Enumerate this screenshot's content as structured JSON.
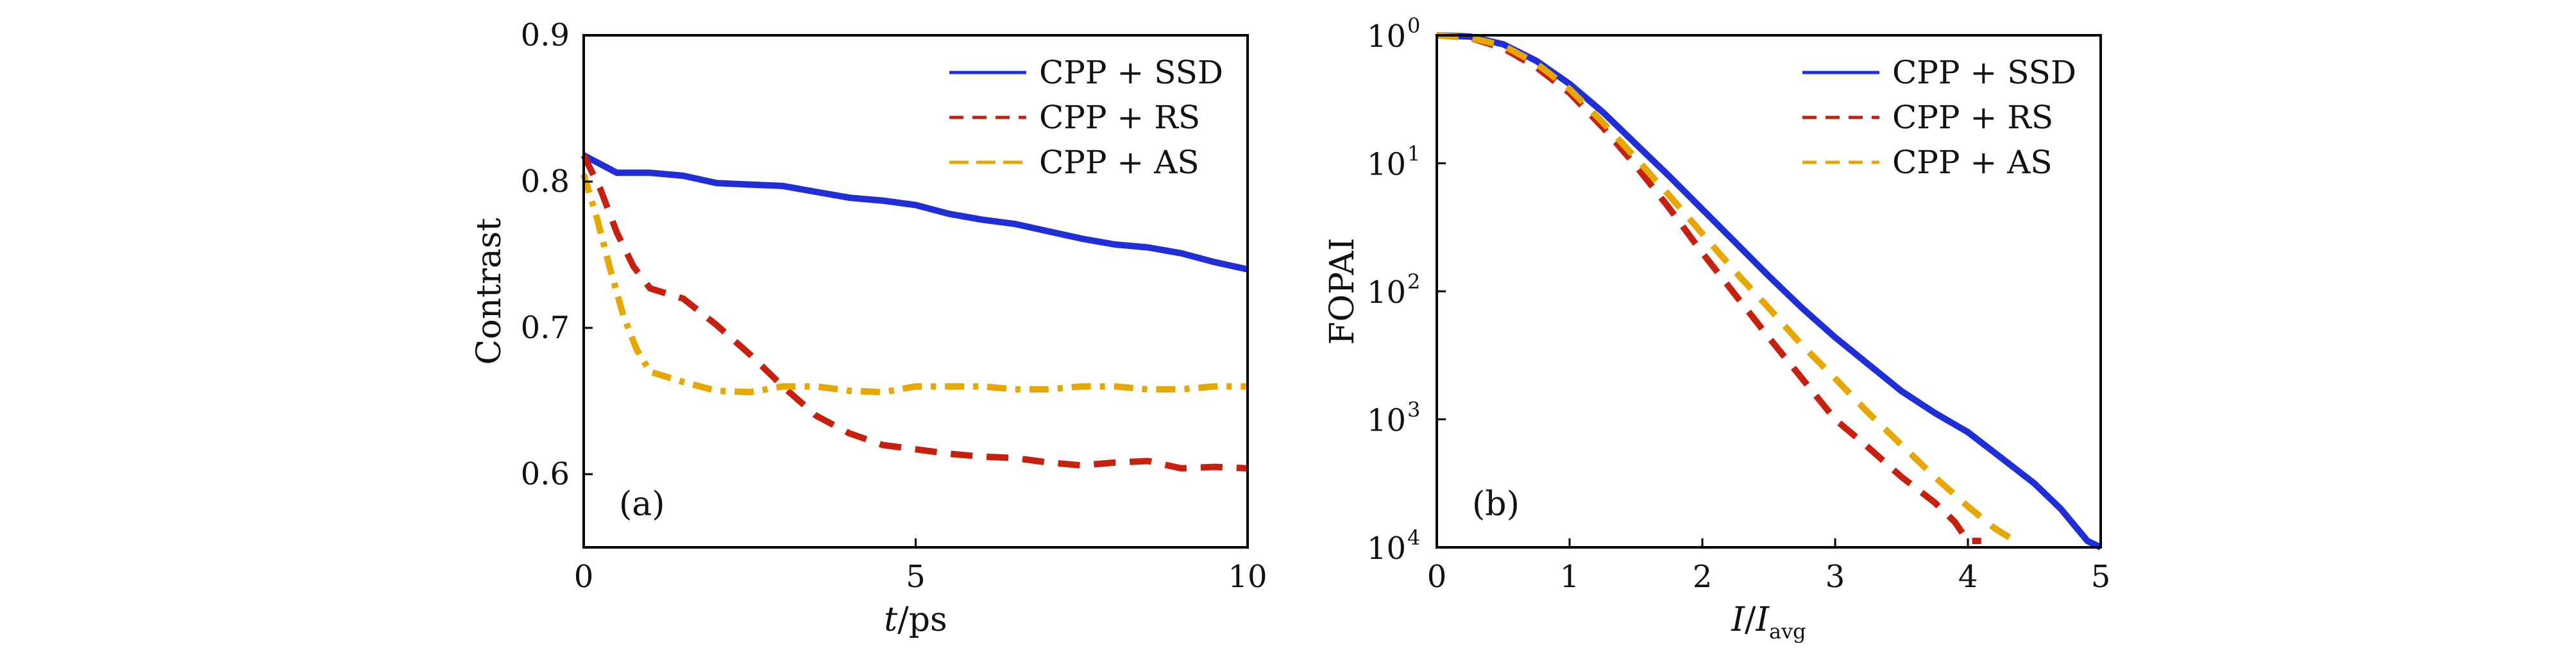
{
  "chart_data": [
    {
      "type": "line",
      "title": "",
      "panel_label": "(a)",
      "xlabel": "t/ps",
      "ylabel": "Contrast",
      "xlim": [
        0,
        10
      ],
      "ylim": [
        0.55,
        0.9
      ],
      "xticks": [
        "0",
        "5",
        "10"
      ],
      "yticks": [
        "0.6",
        "0.7",
        "0.8",
        "0.9"
      ],
      "grid": false,
      "legend_position": "top-right",
      "series": [
        {
          "name": "CPP + SSD",
          "color": "#1f2ed6",
          "style": "solid",
          "x": [
            0,
            0.5,
            1,
            1.5,
            2,
            2.5,
            3,
            3.5,
            4,
            4.5,
            5,
            5.5,
            6,
            6.5,
            7,
            7.5,
            8,
            8.5,
            9,
            9.5,
            10
          ],
          "y": [
            0.818,
            0.806,
            0.806,
            0.804,
            0.799,
            0.798,
            0.797,
            0.793,
            0.789,
            0.787,
            0.784,
            0.778,
            0.774,
            0.771,
            0.766,
            0.761,
            0.757,
            0.755,
            0.751,
            0.745,
            0.74
          ]
        },
        {
          "name": "CPP + RS",
          "color": "#c8200e",
          "style": "dashed",
          "x": [
            0,
            0.25,
            0.5,
            0.75,
            1,
            1.5,
            2,
            2.5,
            3,
            3.5,
            4,
            4.5,
            5,
            5.5,
            6,
            6.5,
            7,
            7.5,
            8,
            8.5,
            9,
            9.5,
            10
          ],
          "y": [
            0.818,
            0.795,
            0.765,
            0.742,
            0.727,
            0.72,
            0.702,
            0.682,
            0.66,
            0.64,
            0.628,
            0.62,
            0.617,
            0.614,
            0.612,
            0.611,
            0.608,
            0.606,
            0.608,
            0.609,
            0.604,
            0.605,
            0.604
          ]
        },
        {
          "name": "CPP + AS",
          "color": "#e6a800",
          "style": "dash-dot",
          "x": [
            0,
            0.2,
            0.4,
            0.6,
            0.8,
            1,
            1.5,
            2,
            2.5,
            3,
            3.5,
            4,
            4.5,
            5,
            5.5,
            6,
            6.5,
            7,
            7.5,
            8,
            8.5,
            9,
            9.5,
            10
          ],
          "y": [
            0.805,
            0.775,
            0.74,
            0.708,
            0.685,
            0.67,
            0.663,
            0.657,
            0.656,
            0.66,
            0.66,
            0.657,
            0.656,
            0.66,
            0.66,
            0.66,
            0.658,
            0.658,
            0.66,
            0.66,
            0.658,
            0.658,
            0.66,
            0.66
          ]
        }
      ]
    },
    {
      "type": "line",
      "title": "",
      "panel_label": "(b)",
      "xlabel_main": "I/I",
      "xlabel_sub": "avg",
      "ylabel": "FOPAI",
      "xlim": [
        0,
        5
      ],
      "ylim_exponent": [
        0,
        4
      ],
      "y_scale": "log (decades increase downward)",
      "xticks": [
        "0",
        "1",
        "2",
        "3",
        "4",
        "5"
      ],
      "yticks": [
        {
          "base": "10",
          "exp": "0"
        },
        {
          "base": "10",
          "exp": "1"
        },
        {
          "base": "10",
          "exp": "2"
        },
        {
          "base": "10",
          "exp": "3"
        },
        {
          "base": "10",
          "exp": "4"
        }
      ],
      "grid": false,
      "legend_position": "top-right",
      "series": [
        {
          "name": "CPP + SSD",
          "color": "#1f2ed6",
          "style": "solid",
          "x": [
            0,
            0.25,
            0.5,
            0.75,
            1,
            1.25,
            1.5,
            1.75,
            2,
            2.25,
            2.5,
            2.75,
            3,
            3.25,
            3.5,
            3.75,
            4,
            4.25,
            4.5,
            4.7,
            4.9,
            5
          ],
          "y_exp": [
            0,
            0.01,
            0.07,
            0.2,
            0.38,
            0.6,
            0.85,
            1.1,
            1.36,
            1.62,
            1.88,
            2.13,
            2.36,
            2.57,
            2.78,
            2.95,
            3.1,
            3.3,
            3.5,
            3.7,
            3.95,
            4.0
          ]
        },
        {
          "name": "CPP + RS",
          "color": "#c8200e",
          "style": "dashed",
          "x": [
            0,
            0.25,
            0.5,
            0.75,
            1,
            1.25,
            1.5,
            1.75,
            2,
            2.25,
            2.5,
            2.75,
            3,
            3.25,
            3.5,
            3.75,
            3.9,
            4.0,
            4.1
          ],
          "y_exp": [
            0,
            0.02,
            0.1,
            0.25,
            0.45,
            0.72,
            1.02,
            1.35,
            1.7,
            2.03,
            2.36,
            2.68,
            3.0,
            3.22,
            3.45,
            3.65,
            3.8,
            3.95,
            3.95
          ]
        },
        {
          "name": "CPP + AS",
          "color": "#e6a800",
          "style": "dashed",
          "x": [
            0,
            0.25,
            0.5,
            0.75,
            1,
            1.25,
            1.5,
            1.75,
            2,
            2.25,
            2.5,
            2.75,
            3,
            3.25,
            3.5,
            3.75,
            4,
            4.2,
            4.4
          ],
          "y_exp": [
            0,
            0.02,
            0.08,
            0.22,
            0.42,
            0.68,
            0.96,
            1.25,
            1.55,
            1.85,
            2.13,
            2.42,
            2.68,
            2.95,
            3.2,
            3.45,
            3.68,
            3.85,
            3.98
          ]
        }
      ]
    }
  ]
}
